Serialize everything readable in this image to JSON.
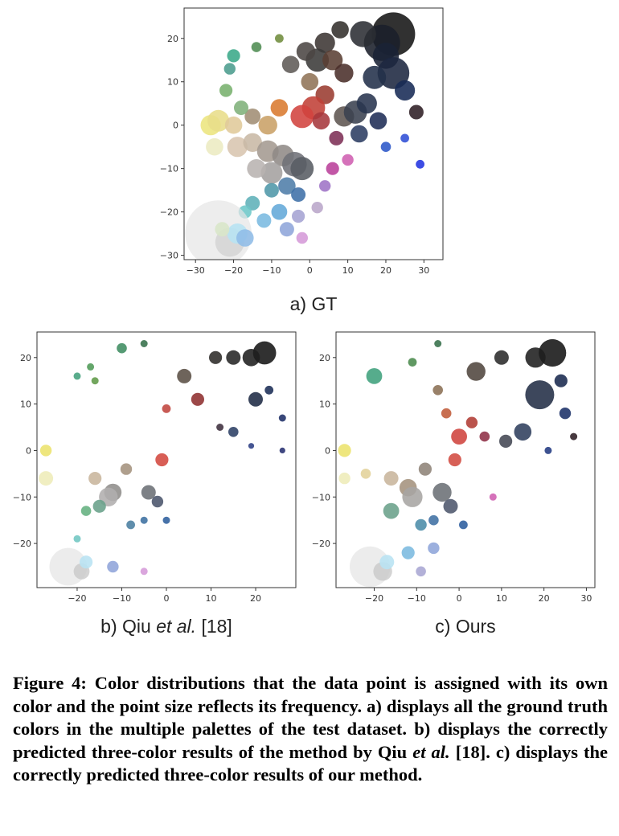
{
  "chart_data": [
    {
      "id": "a",
      "type": "scatter",
      "panel_label": "a) GT",
      "xticks": [
        -30,
        -20,
        -10,
        0,
        10,
        20,
        30
      ],
      "yticks": [
        -30,
        -20,
        -10,
        0,
        10,
        20
      ],
      "xlim": [
        -33,
        35
      ],
      "ylim": [
        -31,
        27
      ],
      "points": [
        {
          "x": 22,
          "y": 21,
          "s": 3,
          "c": "#141414"
        },
        {
          "x": 19,
          "y": 19,
          "s": 2.5,
          "c": "#1a1f2a"
        },
        {
          "x": 14,
          "y": 21,
          "s": 1.8,
          "c": "#2b2d33"
        },
        {
          "x": 8,
          "y": 22,
          "s": 1.2,
          "c": "#33302c"
        },
        {
          "x": 4,
          "y": 19,
          "s": 1.4,
          "c": "#3c3633"
        },
        {
          "x": 20,
          "y": 16,
          "s": 1.8,
          "c": "#1a2236"
        },
        {
          "x": 22,
          "y": 12,
          "s": 2.2,
          "c": "#1d2740"
        },
        {
          "x": 17,
          "y": 11,
          "s": 1.6,
          "c": "#22304a"
        },
        {
          "x": 25,
          "y": 8,
          "s": 1.4,
          "c": "#172a55"
        },
        {
          "x": 28,
          "y": 3,
          "s": 1.0,
          "c": "#2e1e24"
        },
        {
          "x": 2,
          "y": 15,
          "s": 1.6,
          "c": "#3b3a39"
        },
        {
          "x": -1,
          "y": 17,
          "s": 1.3,
          "c": "#4b4643"
        },
        {
          "x": -5,
          "y": 14,
          "s": 1.2,
          "c": "#5e5a56"
        },
        {
          "x": 6,
          "y": 15,
          "s": 1.4,
          "c": "#5a3f33"
        },
        {
          "x": 9,
          "y": 12,
          "s": 1.3,
          "c": "#4a2f2a"
        },
        {
          "x": 0,
          "y": 10,
          "s": 1.2,
          "c": "#8f7356"
        },
        {
          "x": 4,
          "y": 7,
          "s": 1.3,
          "c": "#9a3b30"
        },
        {
          "x": 1,
          "y": 4,
          "s": 1.6,
          "c": "#c04037"
        },
        {
          "x": -2,
          "y": 2,
          "s": 1.6,
          "c": "#d2433f"
        },
        {
          "x": 3,
          "y": 1,
          "s": 1.2,
          "c": "#a6383c"
        },
        {
          "x": 9,
          "y": 2,
          "s": 1.4,
          "c": "#5e5551"
        },
        {
          "x": 12,
          "y": 3,
          "s": 1.6,
          "c": "#3a4150"
        },
        {
          "x": 15,
          "y": 5,
          "s": 1.4,
          "c": "#28344e"
        },
        {
          "x": 18,
          "y": 1,
          "s": 1.2,
          "c": "#1e2c55"
        },
        {
          "x": 13,
          "y": -2,
          "s": 1.2,
          "c": "#2b3c62"
        },
        {
          "x": 7,
          "y": -3,
          "s": 1.0,
          "c": "#7d2f55"
        },
        {
          "x": -8,
          "y": 4,
          "s": 1.2,
          "c": "#d97a2f"
        },
        {
          "x": -11,
          "y": 0,
          "s": 1.3,
          "c": "#c9a067"
        },
        {
          "x": -15,
          "y": 2,
          "s": 1.1,
          "c": "#a08d74"
        },
        {
          "x": -18,
          "y": 4,
          "s": 1.0,
          "c": "#7fb07a"
        },
        {
          "x": -22,
          "y": 8,
          "s": 0.9,
          "c": "#78b16d"
        },
        {
          "x": -21,
          "y": 13,
          "s": 0.8,
          "c": "#4b9c8d"
        },
        {
          "x": -20,
          "y": 16,
          "s": 0.9,
          "c": "#3aa889"
        },
        {
          "x": -14,
          "y": 18,
          "s": 0.7,
          "c": "#4f8c52"
        },
        {
          "x": -8,
          "y": 20,
          "s": 0.6,
          "c": "#6f8c3c"
        },
        {
          "x": -26,
          "y": 0,
          "s": 1.4,
          "c": "#ece57e"
        },
        {
          "x": -24,
          "y": 1,
          "s": 1.5,
          "c": "#e8dd8a"
        },
        {
          "x": -20,
          "y": 0,
          "s": 1.2,
          "c": "#e0c99a"
        },
        {
          "x": -25,
          "y": -5,
          "s": 1.2,
          "c": "#ecebc2"
        },
        {
          "x": -19,
          "y": -5,
          "s": 1.4,
          "c": "#d8c5af"
        },
        {
          "x": -15,
          "y": -4,
          "s": 1.3,
          "c": "#c8b8a5"
        },
        {
          "x": -11,
          "y": -6,
          "s": 1.5,
          "c": "#a49a91"
        },
        {
          "x": -7,
          "y": -7,
          "s": 1.5,
          "c": "#8f8a86"
        },
        {
          "x": -4,
          "y": -9,
          "s": 1.7,
          "c": "#6f7177"
        },
        {
          "x": -2,
          "y": -10,
          "s": 1.6,
          "c": "#585c63"
        },
        {
          "x": -10,
          "y": -11,
          "s": 1.5,
          "c": "#a4a09f"
        },
        {
          "x": -14,
          "y": -10,
          "s": 1.3,
          "c": "#b8b3b0"
        },
        {
          "x": -6,
          "y": -14,
          "s": 1.2,
          "c": "#4e7da8"
        },
        {
          "x": -10,
          "y": -15,
          "s": 1.0,
          "c": "#4f97a8"
        },
        {
          "x": -3,
          "y": -16,
          "s": 1.0,
          "c": "#3f6fa7"
        },
        {
          "x": -15,
          "y": -18,
          "s": 1.0,
          "c": "#5fb1b8"
        },
        {
          "x": -8,
          "y": -20,
          "s": 1.1,
          "c": "#63a8d8"
        },
        {
          "x": -12,
          "y": -22,
          "s": 1.0,
          "c": "#7ab9e0"
        },
        {
          "x": -17,
          "y": -20,
          "s": 0.9,
          "c": "#6dc7c8"
        },
        {
          "x": -6,
          "y": -24,
          "s": 1.0,
          "c": "#8ea5d9"
        },
        {
          "x": -3,
          "y": -21,
          "s": 0.9,
          "c": "#a5a3d3"
        },
        {
          "x": 2,
          "y": -19,
          "s": 0.8,
          "c": "#b9a6c9"
        },
        {
          "x": -2,
          "y": -26,
          "s": 0.8,
          "c": "#d59ad8"
        },
        {
          "x": 6,
          "y": -10,
          "s": 0.9,
          "c": "#b9409a"
        },
        {
          "x": 10,
          "y": -8,
          "s": 0.8,
          "c": "#cf5fb1"
        },
        {
          "x": 4,
          "y": -14,
          "s": 0.8,
          "c": "#9e73c6"
        },
        {
          "x": 20,
          "y": -5,
          "s": 0.7,
          "c": "#2b56c8"
        },
        {
          "x": 25,
          "y": -3,
          "s": 0.6,
          "c": "#2f4fd6"
        },
        {
          "x": 29,
          "y": -9,
          "s": 0.6,
          "c": "#2233e0"
        },
        {
          "x": -24,
          "y": -25,
          "s": 4.6,
          "c": "#e6e6e6",
          "a": 0.7
        },
        {
          "x": -21,
          "y": -27,
          "s": 2.0,
          "c": "#cfcfcf",
          "a": 0.7
        },
        {
          "x": -19,
          "y": -25,
          "s": 1.4,
          "c": "#b6e3f2"
        },
        {
          "x": -17,
          "y": -26,
          "s": 1.2,
          "c": "#8fbce7"
        },
        {
          "x": -23,
          "y": -24,
          "s": 1.0,
          "c": "#d8e6c8"
        }
      ]
    },
    {
      "id": "b",
      "type": "scatter",
      "panel_label": "b) Qiu et al. [18]",
      "xticks": [
        -20,
        -10,
        0,
        10,
        20
      ],
      "yticks": [
        -20,
        -10,
        0,
        10,
        20
      ],
      "xlim": [
        -29,
        29
      ],
      "ylim": [
        -29.5,
        25.5
      ],
      "points": [
        {
          "x": 22,
          "y": 21,
          "s": 1.6,
          "c": "#141414"
        },
        {
          "x": 19,
          "y": 20,
          "s": 1.2,
          "c": "#1e1e1e"
        },
        {
          "x": 15,
          "y": 20,
          "s": 1.0,
          "c": "#262626"
        },
        {
          "x": 11,
          "y": 20,
          "s": 0.9,
          "c": "#2c2a28"
        },
        {
          "x": 20,
          "y": 11,
          "s": 1.0,
          "c": "#1e2a44"
        },
        {
          "x": 23,
          "y": 13,
          "s": 0.6,
          "c": "#1a2c55"
        },
        {
          "x": 26,
          "y": 7,
          "s": 0.5,
          "c": "#1c2e66"
        },
        {
          "x": 15,
          "y": 4,
          "s": 0.7,
          "c": "#2b3f64"
        },
        {
          "x": 12,
          "y": 5,
          "s": 0.5,
          "c": "#3e2f3e"
        },
        {
          "x": 4,
          "y": 16,
          "s": 1.0,
          "c": "#5a4e44"
        },
        {
          "x": 7,
          "y": 11,
          "s": 0.9,
          "c": "#8e2f2f"
        },
        {
          "x": 0,
          "y": 9,
          "s": 0.6,
          "c": "#c0443d"
        },
        {
          "x": -1,
          "y": -2,
          "s": 0.9,
          "c": "#d3483f"
        },
        {
          "x": -10,
          "y": 22,
          "s": 0.7,
          "c": "#3f8c61"
        },
        {
          "x": -5,
          "y": 23,
          "s": 0.5,
          "c": "#36704a"
        },
        {
          "x": -17,
          "y": 18,
          "s": 0.5,
          "c": "#4e9a56"
        },
        {
          "x": -20,
          "y": 16,
          "s": 0.5,
          "c": "#43a07c"
        },
        {
          "x": -16,
          "y": 15,
          "s": 0.5,
          "c": "#609a48"
        },
        {
          "x": -27,
          "y": 0,
          "s": 0.8,
          "c": "#ece36c"
        },
        {
          "x": -27,
          "y": -6,
          "s": 1.0,
          "c": "#eeecb8"
        },
        {
          "x": -16,
          "y": -6,
          "s": 0.9,
          "c": "#c8b59c"
        },
        {
          "x": -9,
          "y": -4,
          "s": 0.8,
          "c": "#a4927d"
        },
        {
          "x": -4,
          "y": -9,
          "s": 1.0,
          "c": "#6b6f75"
        },
        {
          "x": -12,
          "y": -9,
          "s": 1.2,
          "c": "#8f8d8b"
        },
        {
          "x": -13,
          "y": -10,
          "s": 1.3,
          "c": "#b0aeae"
        },
        {
          "x": -2,
          "y": -11,
          "s": 0.8,
          "c": "#4a546b"
        },
        {
          "x": -15,
          "y": -12,
          "s": 0.9,
          "c": "#69a08a"
        },
        {
          "x": -18,
          "y": -13,
          "s": 0.7,
          "c": "#64b07f"
        },
        {
          "x": -8,
          "y": -16,
          "s": 0.6,
          "c": "#4a7ea0"
        },
        {
          "x": -5,
          "y": -15,
          "s": 0.5,
          "c": "#3c6fa1"
        },
        {
          "x": 0,
          "y": -15,
          "s": 0.5,
          "c": "#2e5e9d"
        },
        {
          "x": -20,
          "y": -19,
          "s": 0.5,
          "c": "#70c6c2"
        },
        {
          "x": -12,
          "y": -25,
          "s": 0.8,
          "c": "#8fa4d9"
        },
        {
          "x": -5,
          "y": -26,
          "s": 0.5,
          "c": "#d59ad8"
        },
        {
          "x": -22,
          "y": -25,
          "s": 2.6,
          "c": "#e4e4e4",
          "a": 0.7
        },
        {
          "x": -19,
          "y": -26,
          "s": 1.1,
          "c": "#c9c9c9",
          "a": 0.8
        },
        {
          "x": -18,
          "y": -24,
          "s": 0.9,
          "c": "#b8e2f2"
        },
        {
          "x": 19,
          "y": 1,
          "s": 0.4,
          "c": "#2c3f84"
        },
        {
          "x": 26,
          "y": 0,
          "s": 0.4,
          "c": "#262f70"
        }
      ]
    },
    {
      "id": "c",
      "type": "scatter",
      "panel_label": "c) Ours",
      "xticks": [
        -20,
        -10,
        0,
        10,
        20,
        30
      ],
      "yticks": [
        -20,
        -10,
        0,
        10,
        20
      ],
      "xlim": [
        -29,
        32
      ],
      "ylim": [
        -29.5,
        25.5
      ],
      "points": [
        {
          "x": 22,
          "y": 21,
          "s": 1.9,
          "c": "#141414"
        },
        {
          "x": 18,
          "y": 20,
          "s": 1.4,
          "c": "#1e1e1e"
        },
        {
          "x": 10,
          "y": 20,
          "s": 1.0,
          "c": "#2a2a2a"
        },
        {
          "x": 4,
          "y": 17,
          "s": 1.3,
          "c": "#50463e"
        },
        {
          "x": 19,
          "y": 12,
          "s": 2.0,
          "c": "#222e46"
        },
        {
          "x": 24,
          "y": 15,
          "s": 0.9,
          "c": "#19294f"
        },
        {
          "x": 25,
          "y": 8,
          "s": 0.8,
          "c": "#1a3068"
        },
        {
          "x": 15,
          "y": 4,
          "s": 1.2,
          "c": "#2f3f5d"
        },
        {
          "x": 11,
          "y": 2,
          "s": 0.9,
          "c": "#434753"
        },
        {
          "x": 6,
          "y": 3,
          "s": 0.7,
          "c": "#8e2f46"
        },
        {
          "x": 0,
          "y": 3,
          "s": 1.1,
          "c": "#cf433d"
        },
        {
          "x": -1,
          "y": -2,
          "s": 0.9,
          "c": "#d14a40"
        },
        {
          "x": 3,
          "y": 6,
          "s": 0.8,
          "c": "#b13b33"
        },
        {
          "x": -3,
          "y": 8,
          "s": 0.7,
          "c": "#c05b39"
        },
        {
          "x": -5,
          "y": 13,
          "s": 0.7,
          "c": "#8b7054"
        },
        {
          "x": -20,
          "y": 16,
          "s": 1.1,
          "c": "#3fa07c"
        },
        {
          "x": -11,
          "y": 19,
          "s": 0.6,
          "c": "#4a8a4c"
        },
        {
          "x": -5,
          "y": 23,
          "s": 0.5,
          "c": "#36704a"
        },
        {
          "x": -27,
          "y": 0,
          "s": 0.9,
          "c": "#ece36c"
        },
        {
          "x": -27,
          "y": -6,
          "s": 0.8,
          "c": "#eeecb8"
        },
        {
          "x": -22,
          "y": -5,
          "s": 0.7,
          "c": "#e2d29a"
        },
        {
          "x": -16,
          "y": -6,
          "s": 1.0,
          "c": "#c8b59c"
        },
        {
          "x": -12,
          "y": -8,
          "s": 1.2,
          "c": "#a4927d"
        },
        {
          "x": -8,
          "y": -4,
          "s": 0.9,
          "c": "#8e8377"
        },
        {
          "x": -4,
          "y": -9,
          "s": 1.3,
          "c": "#6b6f75"
        },
        {
          "x": -11,
          "y": -10,
          "s": 1.4,
          "c": "#a7a5a3"
        },
        {
          "x": -2,
          "y": -12,
          "s": 1.0,
          "c": "#4d566c"
        },
        {
          "x": -16,
          "y": -13,
          "s": 1.1,
          "c": "#6aa08a"
        },
        {
          "x": -9,
          "y": -16,
          "s": 0.8,
          "c": "#4b8ca8"
        },
        {
          "x": -6,
          "y": -15,
          "s": 0.7,
          "c": "#3f6fa3"
        },
        {
          "x": -12,
          "y": -22,
          "s": 0.9,
          "c": "#7bb9df"
        },
        {
          "x": -6,
          "y": -21,
          "s": 0.8,
          "c": "#8ea5d9"
        },
        {
          "x": 1,
          "y": -16,
          "s": 0.6,
          "c": "#2c5d9e"
        },
        {
          "x": -9,
          "y": -26,
          "s": 0.7,
          "c": "#a9a6d3"
        },
        {
          "x": 8,
          "y": -10,
          "s": 0.5,
          "c": "#cf5fb1"
        },
        {
          "x": -21,
          "y": -25,
          "s": 2.8,
          "c": "#e4e4e4",
          "a": 0.7
        },
        {
          "x": -18,
          "y": -26,
          "s": 1.3,
          "c": "#c9c9c9",
          "a": 0.8
        },
        {
          "x": -17,
          "y": -24,
          "s": 1.0,
          "c": "#b8e2f2"
        },
        {
          "x": 27,
          "y": 3,
          "s": 0.5,
          "c": "#2e1e24"
        },
        {
          "x": 21,
          "y": 0,
          "s": 0.5,
          "c": "#223a82"
        }
      ]
    }
  ],
  "caption": {
    "fig_label": "Figure 4:",
    "part1": " Color distributions that the data point is assigned with its own color and the point size reflects its frequency. a) displays all the ground truth colors in the multiple palettes of the test dataset. b) displays the correctly predicted three-color results of the method by Qiu ",
    "etal1": "et al.",
    "part2": " [18]. c) displays the correctly predicted three-color results of our method."
  }
}
